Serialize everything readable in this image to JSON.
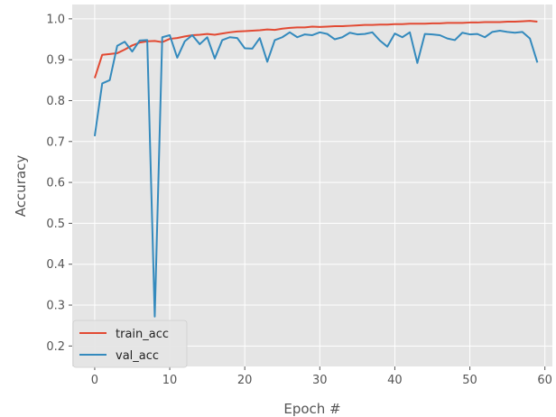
{
  "chart_data": {
    "type": "line",
    "title": "",
    "xlabel": "Epoch #",
    "ylabel": "Accuracy",
    "xlim": [
      -3,
      61
    ],
    "ylim": [
      0.15,
      1.035
    ],
    "xticks": [
      0,
      10,
      20,
      30,
      40,
      50,
      60
    ],
    "yticks": [
      0.2,
      0.3,
      0.4,
      0.5,
      0.6,
      0.7,
      0.8,
      0.9,
      1.0
    ],
    "ytick_labels": [
      "0.2",
      "0.3",
      "0.4",
      "0.5",
      "0.6",
      "0.7",
      "0.8",
      "0.9",
      "1.0"
    ],
    "grid": true,
    "legend_position": "lower-left",
    "x": [
      0,
      1,
      2,
      3,
      4,
      5,
      6,
      7,
      8,
      9,
      10,
      11,
      12,
      13,
      14,
      15,
      16,
      17,
      18,
      19,
      20,
      21,
      22,
      23,
      24,
      25,
      26,
      27,
      28,
      29,
      30,
      31,
      32,
      33,
      34,
      35,
      36,
      37,
      38,
      39,
      40,
      41,
      42,
      43,
      44,
      45,
      46,
      47,
      48,
      49,
      50,
      51,
      52,
      53,
      54,
      55,
      56,
      57,
      58,
      59
    ],
    "series": [
      {
        "name": "train_acc",
        "color": "#E24A33",
        "values": [
          0.855,
          0.912,
          0.914,
          0.916,
          0.925,
          0.935,
          0.942,
          0.945,
          0.946,
          0.943,
          0.951,
          0.953,
          0.957,
          0.96,
          0.961,
          0.963,
          0.961,
          0.964,
          0.967,
          0.969,
          0.97,
          0.971,
          0.972,
          0.974,
          0.973,
          0.976,
          0.978,
          0.979,
          0.979,
          0.981,
          0.98,
          0.981,
          0.982,
          0.982,
          0.983,
          0.984,
          0.985,
          0.985,
          0.986,
          0.986,
          0.987,
          0.987,
          0.988,
          0.988,
          0.988,
          0.989,
          0.989,
          0.99,
          0.99,
          0.99,
          0.991,
          0.991,
          0.992,
          0.992,
          0.992,
          0.993,
          0.993,
          0.994,
          0.995,
          0.993
        ]
      },
      {
        "name": "val_acc",
        "color": "#348ABD",
        "values": [
          0.713,
          0.842,
          0.85,
          0.934,
          0.944,
          0.92,
          0.947,
          0.948,
          0.272,
          0.955,
          0.96,
          0.905,
          0.945,
          0.96,
          0.938,
          0.955,
          0.903,
          0.948,
          0.955,
          0.953,
          0.928,
          0.927,
          0.953,
          0.895,
          0.948,
          0.955,
          0.967,
          0.955,
          0.962,
          0.96,
          0.967,
          0.963,
          0.95,
          0.955,
          0.966,
          0.962,
          0.963,
          0.967,
          0.947,
          0.932,
          0.964,
          0.955,
          0.967,
          0.892,
          0.963,
          0.962,
          0.96,
          0.952,
          0.948,
          0.966,
          0.962,
          0.963,
          0.955,
          0.968,
          0.971,
          0.968,
          0.966,
          0.968,
          0.952,
          0.893
        ]
      }
    ]
  }
}
